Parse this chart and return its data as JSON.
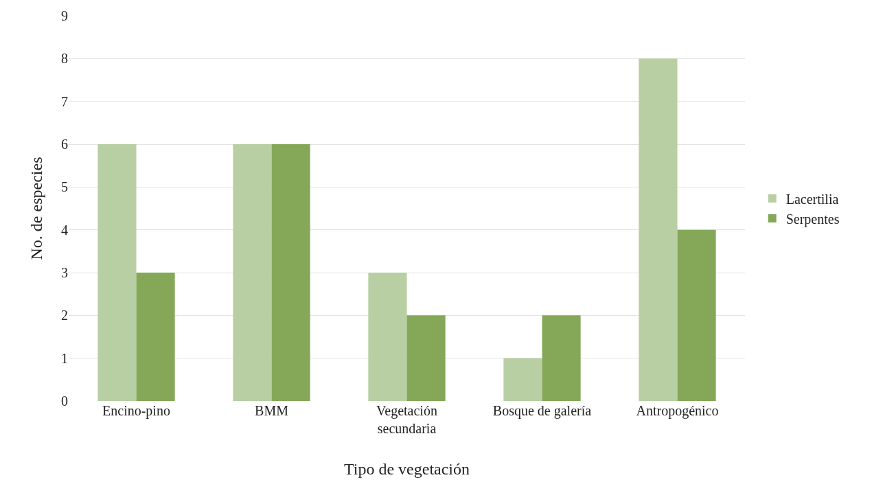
{
  "chart_data": {
    "type": "bar",
    "xlabel": "Tipo de vegetación",
    "ylabel": "No. de especies",
    "categories": [
      "Encino-pino",
      "BMM",
      "Vegetación secundaria",
      "Bosque de galería",
      "Antropogénico"
    ],
    "series": [
      {
        "name": "Lacertilia",
        "color": "#b8cfa3",
        "values": [
          6,
          6,
          3,
          1,
          8
        ]
      },
      {
        "name": "Serpentes",
        "color": "#84a858",
        "values": [
          3,
          6,
          2,
          2,
          4
        ]
      }
    ],
    "ylim": [
      0,
      9
    ],
    "yticks": [
      0,
      1,
      2,
      3,
      4,
      5,
      6,
      7,
      8,
      9
    ],
    "grid": "y",
    "legend": "right"
  }
}
